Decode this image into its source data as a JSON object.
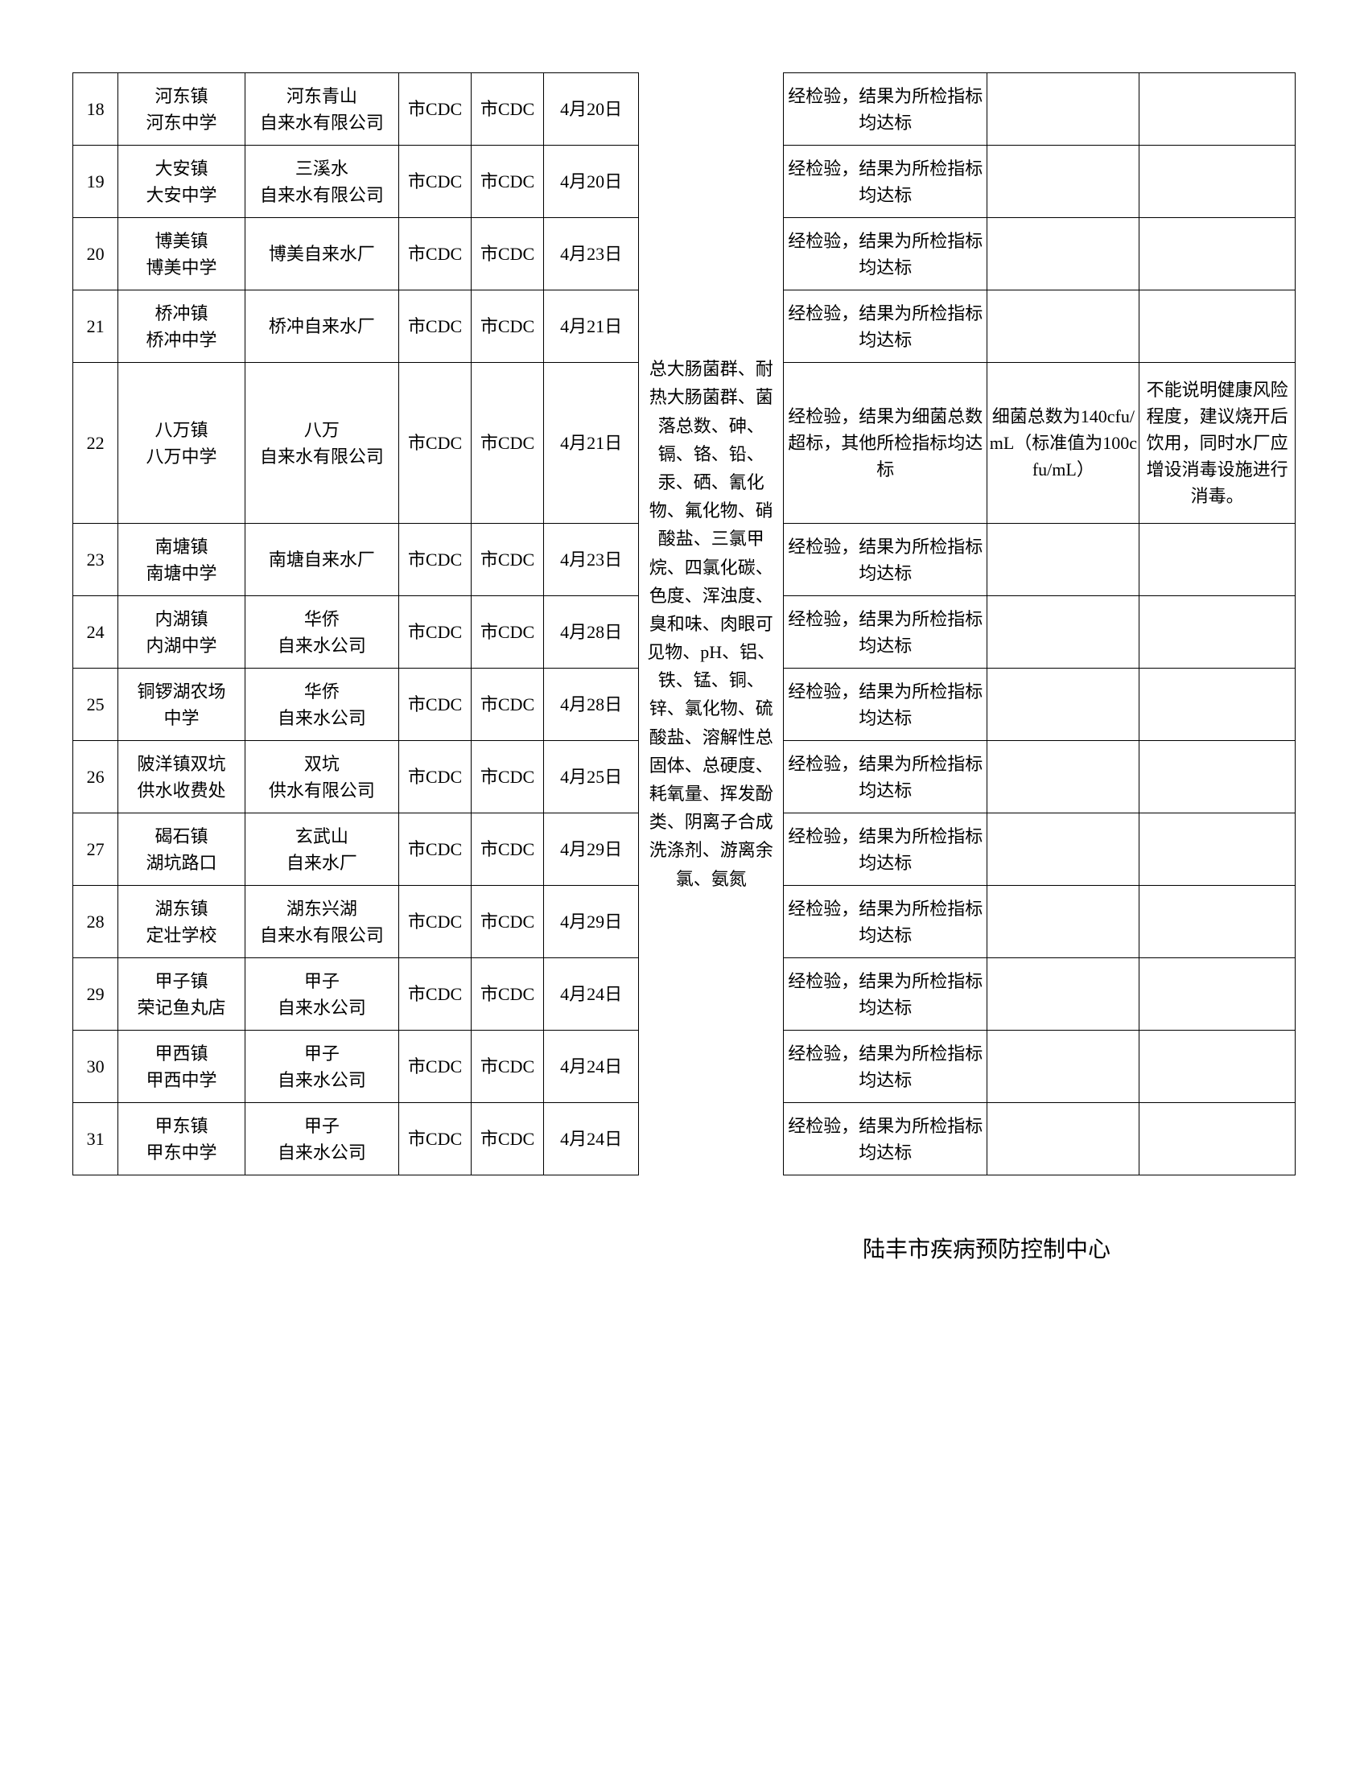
{
  "table": {
    "columns": {
      "idx_width": 50,
      "loc_width": 140,
      "sup_width": 170,
      "cdc1_width": 80,
      "cdc2_width": 80,
      "date_width": 105,
      "items_width": 160,
      "res_width": 225,
      "note_width": 168,
      "rec_width": 172
    },
    "border_color": "#000000",
    "background_color": "#ffffff",
    "font_size": 22,
    "row_height_approx": 90,
    "total_rows": 14,
    "items_rowspan": 14,
    "rows": [
      {
        "idx": "18",
        "loc_line1": "河东镇",
        "loc_line2": "河东中学",
        "supplier_line1": "河东青山",
        "supplier_line2": "自来水有限公司",
        "cdc1": "市CDC",
        "cdc2": "市CDC",
        "date": "4月20日",
        "result": "经检验，结果为所检指标均达标",
        "note": "",
        "rec": ""
      },
      {
        "idx": "19",
        "loc_line1": "大安镇",
        "loc_line2": "大安中学",
        "supplier_line1": "三溪水",
        "supplier_line2": "自来水有限公司",
        "cdc1": "市CDC",
        "cdc2": "市CDC",
        "date": "4月20日",
        "result": "经检验，结果为所检指标均达标",
        "note": "",
        "rec": ""
      },
      {
        "idx": "20",
        "loc_line1": "博美镇",
        "loc_line2": "博美中学",
        "supplier_line1": "博美自来水厂",
        "supplier_line2": "",
        "cdc1": "市CDC",
        "cdc2": "市CDC",
        "date": "4月23日",
        "result": "经检验，结果为所检指标均达标",
        "note": "",
        "rec": ""
      },
      {
        "idx": "21",
        "loc_line1": "桥冲镇",
        "loc_line2": "桥冲中学",
        "supplier_line1": "桥冲自来水厂",
        "supplier_line2": "",
        "cdc1": "市CDC",
        "cdc2": "市CDC",
        "date": "4月21日",
        "result": "经检验，结果为所检指标均达标",
        "note": "",
        "rec": ""
      },
      {
        "idx": "22",
        "loc_line1": "八万镇",
        "loc_line2": "八万中学",
        "supplier_line1": "八万",
        "supplier_line2": "自来水有限公司",
        "cdc1": "市CDC",
        "cdc2": "市CDC",
        "date": "4月21日",
        "result": "经检验，结果为细菌总数超标，其他所检指标均达标",
        "note": "细菌总数为140cfu/mL（标准值为100cfu/mL）",
        "rec": "不能说明健康风险程度，建议烧开后饮用，同时水厂应增设消毒设施进行消毒。",
        "tall": true
      },
      {
        "idx": "23",
        "loc_line1": "南塘镇",
        "loc_line2": "南塘中学",
        "supplier_line1": "南塘自来水厂",
        "supplier_line2": "",
        "cdc1": "市CDC",
        "cdc2": "市CDC",
        "date": "4月23日",
        "result": "经检验，结果为所检指标均达标",
        "note": "",
        "rec": ""
      },
      {
        "idx": "24",
        "loc_line1": "内湖镇",
        "loc_line2": "内湖中学",
        "supplier_line1": "华侨",
        "supplier_line2": "自来水公司",
        "cdc1": "市CDC",
        "cdc2": "市CDC",
        "date": "4月28日",
        "result": "经检验，结果为所检指标均达标",
        "note": "",
        "rec": ""
      },
      {
        "idx": "25",
        "loc_line1": "铜锣湖农场",
        "loc_line2": "中学",
        "supplier_line1": "华侨",
        "supplier_line2": "自来水公司",
        "cdc1": "市CDC",
        "cdc2": "市CDC",
        "date": "4月28日",
        "result": "经检验，结果为所检指标均达标",
        "note": "",
        "rec": ""
      },
      {
        "idx": "26",
        "loc_line1": "陂洋镇双坑",
        "loc_line2": "供水收费处",
        "supplier_line1": "双坑",
        "supplier_line2": "供水有限公司",
        "cdc1": "市CDC",
        "cdc2": "市CDC",
        "date": "4月25日",
        "result": "经检验，结果为所检指标均达标",
        "note": "",
        "rec": ""
      },
      {
        "idx": "27",
        "loc_line1": "碣石镇",
        "loc_line2": "湖坑路口",
        "supplier_line1": "玄武山",
        "supplier_line2": "自来水厂",
        "cdc1": "市CDC",
        "cdc2": "市CDC",
        "date": "4月29日",
        "result": "经检验，结果为所检指标均达标",
        "note": "",
        "rec": ""
      },
      {
        "idx": "28",
        "loc_line1": "湖东镇",
        "loc_line2": "定壮学校",
        "supplier_line1": "湖东兴湖",
        "supplier_line2": "自来水有限公司",
        "cdc1": "市CDC",
        "cdc2": "市CDC",
        "date": "4月29日",
        "result": "经检验，结果为所检指标均达标",
        "note": "",
        "rec": ""
      },
      {
        "idx": "29",
        "loc_line1": "甲子镇",
        "loc_line2": "荣记鱼丸店",
        "supplier_line1": "甲子",
        "supplier_line2": "自来水公司",
        "cdc1": "市CDC",
        "cdc2": "市CDC",
        "date": "4月24日",
        "result": "经检验，结果为所检指标均达标",
        "note": "",
        "rec": ""
      },
      {
        "idx": "30",
        "loc_line1": "甲西镇",
        "loc_line2": "甲西中学",
        "supplier_line1": "甲子",
        "supplier_line2": "自来水公司",
        "cdc1": "市CDC",
        "cdc2": "市CDC",
        "date": "4月24日",
        "result": "经检验，结果为所检指标均达标",
        "note": "",
        "rec": ""
      },
      {
        "idx": "31",
        "loc_line1": "甲东镇",
        "loc_line2": "甲东中学",
        "supplier_line1": "甲子",
        "supplier_line2": "自来水公司",
        "cdc1": "市CDC",
        "cdc2": "市CDC",
        "date": "4月24日",
        "result": "经检验，结果为所检指标均达标",
        "note": "",
        "rec": ""
      }
    ],
    "items_text": "总大肠菌群、耐热大肠菌群、菌落总数、砷、镉、铬、铅、汞、硒、氰化物、氟化物、硝酸盐、三氯甲烷、四氯化碳、色度、浑浊度、臭和味、肉眼可见物、pH、铝、铁、锰、铜、锌、氯化物、硫酸盐、溶解性总固体、总硬度、耗氧量、挥发酚类、阴离子合成洗涤剂、游离余氯、氨氮"
  },
  "footer": "陆丰市疾病预防控制中心"
}
